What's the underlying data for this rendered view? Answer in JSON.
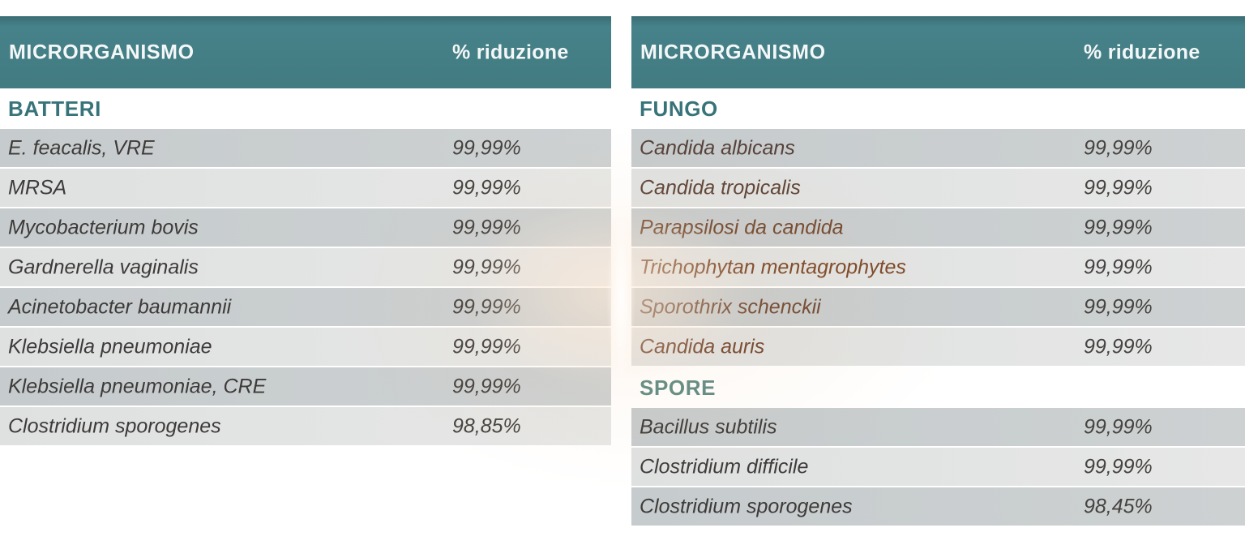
{
  "theme": {
    "accent_teal": "#427b81",
    "header_text": "#f4f7f7",
    "row_dark": "#c9cdce",
    "row_light": "#e2e4e3",
    "row_text": "#3d3b39"
  },
  "tables": [
    {
      "header": {
        "organism_label": "MICRORGANISMO",
        "reduction_label": "% riduzione"
      },
      "sections": [
        {
          "label": "BATTERI",
          "label_color": "#377379",
          "rows": [
            {
              "name": "E. feacalis, VRE",
              "value": "99,99%"
            },
            {
              "name": "MRSA",
              "value": "99,99%"
            },
            {
              "name": "Mycobacterium bovis",
              "value": "99,99%"
            },
            {
              "name": "Gardnerella vaginalis",
              "value": "99,99%"
            },
            {
              "name": "Acinetobacter baumannii",
              "value": "99,99%"
            },
            {
              "name": "Klebsiella pneumoniae",
              "value": "99,99%"
            },
            {
              "name": "Klebsiella pneumoniae, CRE",
              "value": "99,99%"
            },
            {
              "name": "Clostridium sporogenes",
              "value": "98,85%"
            }
          ]
        }
      ]
    },
    {
      "header": {
        "organism_label": "MICRORGANISMO",
        "reduction_label": "% riduzione"
      },
      "sections": [
        {
          "label": "FUNGO",
          "label_color": "#377379",
          "rows": [
            {
              "name": "Candida albicans",
              "value": "99,99%",
              "name_color": "#55413a"
            },
            {
              "name": "Candida tropicalis",
              "value": "99,99%",
              "name_color": "#5e4336"
            },
            {
              "name": "Parapsilosi da candida",
              "value": "99,99%",
              "name_color": "#74492f"
            },
            {
              "name": "Trichophytan mentagrophytes",
              "value": "99,99%",
              "name_color": "#7c4726"
            },
            {
              "name": "Sporothrix schenckii",
              "value": "99,99%",
              "name_color": "#6f4730"
            },
            {
              "name": "Candida auris",
              "value": "99,99%",
              "name_color": "#6f432c"
            }
          ]
        },
        {
          "label": "SPORE",
          "label_color": "#5d8b84",
          "rows": [
            {
              "name": "Bacillus subtilis",
              "value": "99,99%"
            },
            {
              "name": "Clostridium difficile",
              "value": "99,99%"
            },
            {
              "name": "Clostridium sporogenes",
              "value": "98,45%"
            }
          ]
        }
      ]
    }
  ]
}
